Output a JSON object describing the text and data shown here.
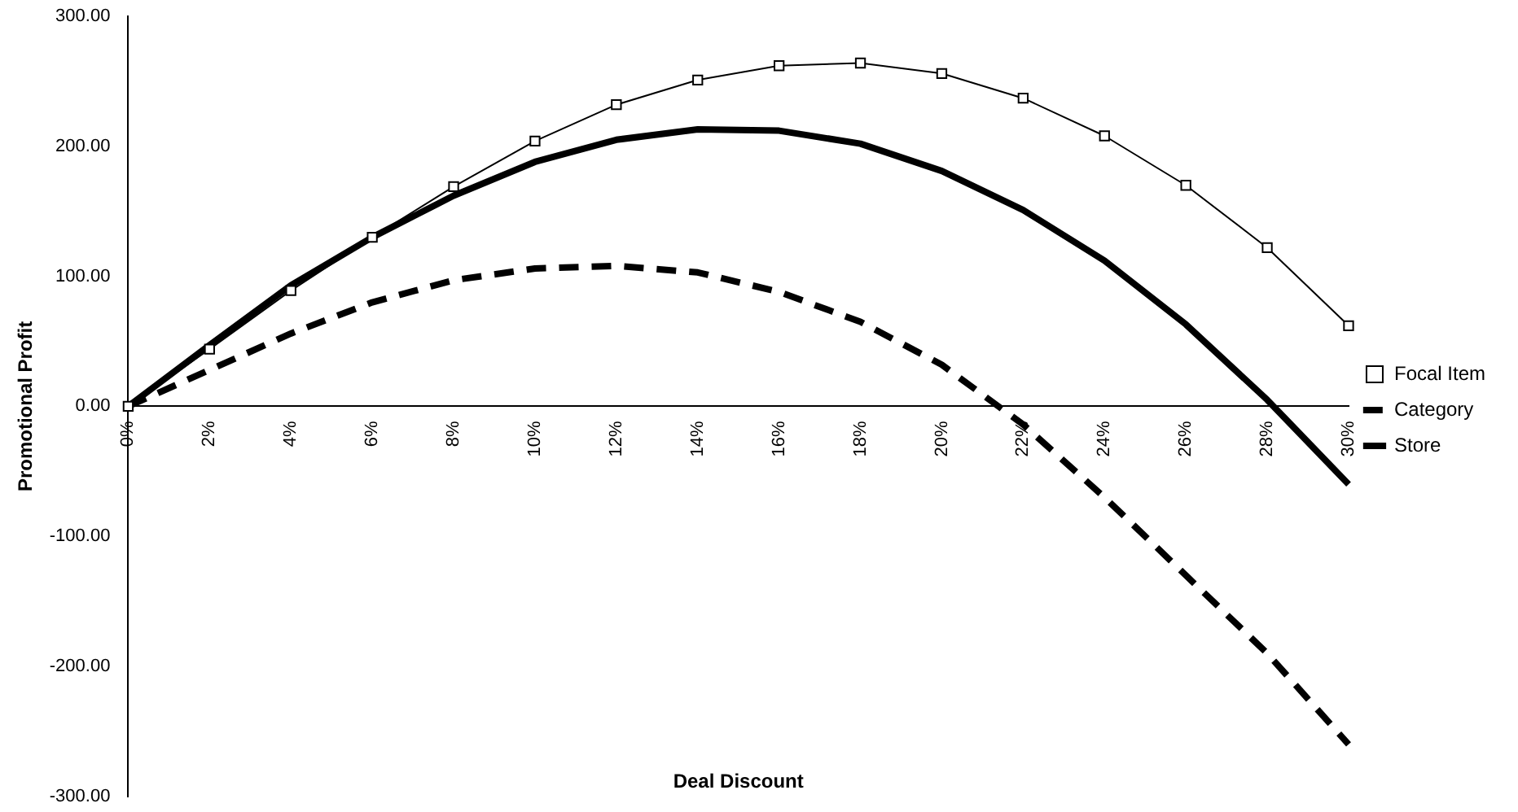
{
  "chart_data": {
    "type": "line",
    "xlabel": "Deal Discount",
    "ylabel": "Promotional Profit",
    "categories": [
      "0%",
      "2%",
      "4%",
      "6%",
      "8%",
      "10%",
      "12%",
      "14%",
      "16%",
      "18%",
      "20%",
      "22%",
      "24%",
      "26%",
      "28%",
      "30%"
    ],
    "series": [
      {
        "name": "Focal Item",
        "color": "#000000",
        "marker": "square",
        "line_style": "solid",
        "values": [
          0,
          44,
          89,
          130,
          169,
          204,
          232,
          251,
          262,
          264,
          256,
          237,
          208,
          170,
          122,
          62
        ]
      },
      {
        "name": "Category",
        "color": "#000000",
        "marker": "none",
        "line_style": "dashed",
        "values": [
          0,
          28,
          56,
          80,
          97,
          106,
          108,
          103,
          88,
          65,
          32,
          -14,
          -70,
          -130,
          -190,
          -260
        ]
      },
      {
        "name": "Store",
        "color": "#000000",
        "marker": "none",
        "line_style": "solid",
        "values": [
          0,
          47,
          93,
          130,
          162,
          188,
          205,
          213,
          212,
          202,
          181,
          151,
          112,
          63,
          5,
          -60
        ]
      }
    ],
    "ylim": [
      -300,
      300
    ],
    "yticks": [
      {
        "value": -300,
        "label": "-300.00"
      },
      {
        "value": -200,
        "label": "-200.00"
      },
      {
        "value": -100,
        "label": "-100.00"
      },
      {
        "value": 0,
        "label": "0.00"
      },
      {
        "value": 100,
        "label": "100.00"
      },
      {
        "value": 200,
        "label": "200.00"
      },
      {
        "value": 300,
        "label": "300.00"
      }
    ],
    "grid": false,
    "legend": "right"
  }
}
